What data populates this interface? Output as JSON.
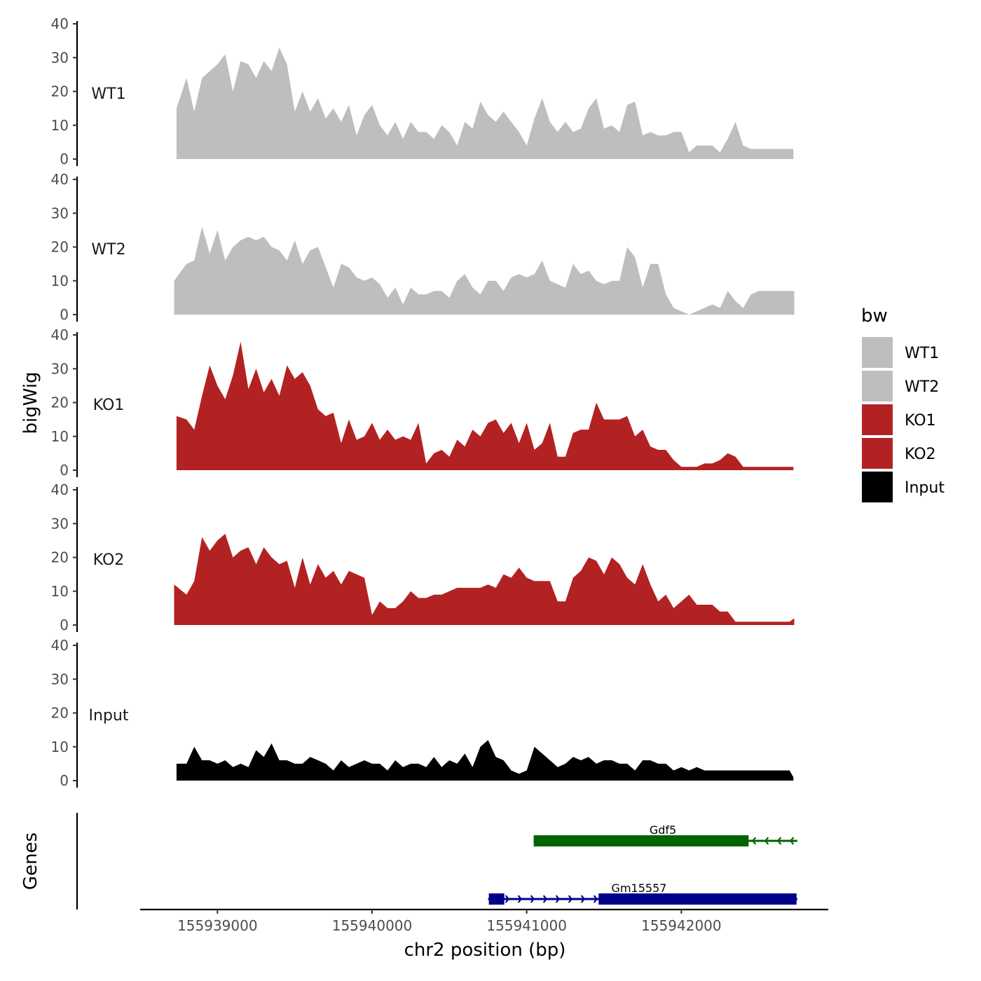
{
  "chart_data": {
    "type": "area",
    "title": "",
    "ylabel": "bigWig",
    "xlabel": "chr2 position (bp)",
    "ylim": [
      0,
      40
    ],
    "yticks": [
      0,
      10,
      20,
      30,
      40
    ],
    "xlim": [
      155938500,
      155942950
    ],
    "xticks": [
      155939000,
      155940000,
      155941000,
      155942000
    ],
    "xtick_labels": [
      "155939000",
      "155940000",
      "155941000",
      "155942000"
    ],
    "legend": {
      "title": "bw",
      "position": "right",
      "entries": [
        {
          "name": "WT1",
          "color": "#bebebe"
        },
        {
          "name": "WT2",
          "color": "#bebebe"
        },
        {
          "name": "KO1",
          "color": "#b22222"
        },
        {
          "name": "KO2",
          "color": "#b22222"
        },
        {
          "name": "Input",
          "color": "#000000"
        }
      ]
    },
    "series": [
      {
        "name": "WT1",
        "color": "#bebebe",
        "x": [
          155938735,
          155938800,
          155938850,
          155938900,
          155938950,
          155939000,
          155939050,
          155939100,
          155939150,
          155939200,
          155939250,
          155939300,
          155939350,
          155939400,
          155939450,
          155939500,
          155939550,
          155939600,
          155939650,
          155939700,
          155939750,
          155939800,
          155939850,
          155939900,
          155939950,
          155940000,
          155940050,
          155940100,
          155940150,
          155940200,
          155940250,
          155940300,
          155940350,
          155940400,
          155940450,
          155940500,
          155940550,
          155940600,
          155940650,
          155940700,
          155940750,
          155940800,
          155940850,
          155940900,
          155940950,
          155941000,
          155941050,
          155941100,
          155941150,
          155941200,
          155941250,
          155941300,
          155941350,
          155941400,
          155941450,
          155941500,
          155941550,
          155941600,
          155941650,
          155941700,
          155941750,
          155941800,
          155941850,
          155941900,
          155941950,
          155942000,
          155942050,
          155942100,
          155942150,
          155942200,
          155942250,
          155942300,
          155942350,
          155942400,
          155942450,
          155942500,
          155942550,
          155942600,
          155942650,
          155942700,
          155942725
        ],
        "values": [
          15,
          24,
          14,
          24,
          26,
          28,
          31,
          20,
          29,
          28,
          24,
          29,
          26,
          33,
          28,
          14,
          20,
          14,
          18,
          12,
          15,
          11,
          16,
          7,
          13,
          16,
          10,
          7,
          11,
          6,
          11,
          8,
          8,
          6,
          10,
          8,
          4,
          11,
          9,
          17,
          13,
          11,
          14,
          11,
          8,
          4,
          12,
          18,
          11,
          8,
          11,
          8,
          9,
          15,
          18,
          9,
          10,
          8,
          16,
          17,
          7,
          8,
          7,
          7,
          8,
          8,
          2,
          4,
          4,
          4,
          2,
          6,
          11,
          4,
          3,
          3,
          3,
          3,
          3,
          3,
          3
        ]
      },
      {
        "name": "WT2",
        "color": "#bebebe",
        "x": [
          155938720,
          155938800,
          155938850,
          155938900,
          155938950,
          155939000,
          155939050,
          155939100,
          155939150,
          155939200,
          155939250,
          155939300,
          155939350,
          155939400,
          155939450,
          155939500,
          155939550,
          155939600,
          155939650,
          155939700,
          155939750,
          155939800,
          155939850,
          155939900,
          155939950,
          155940000,
          155940050,
          155940100,
          155940150,
          155940200,
          155940250,
          155940300,
          155940350,
          155940400,
          155940450,
          155940500,
          155940550,
          155940600,
          155940650,
          155940700,
          155940750,
          155940800,
          155940850,
          155940900,
          155940950,
          155941000,
          155941050,
          155941100,
          155941150,
          155941200,
          155941250,
          155941300,
          155941350,
          155941400,
          155941450,
          155941500,
          155941550,
          155941600,
          155941650,
          155941700,
          155941750,
          155941800,
          155941850,
          155941900,
          155941950,
          155942000,
          155942050,
          155942100,
          155942150,
          155942200,
          155942250,
          155942300,
          155942350,
          155942400,
          155942450,
          155942500,
          155942550,
          155942600,
          155942650,
          155942700,
          155942730
        ],
        "values": [
          10,
          15,
          16,
          26,
          18,
          25,
          16,
          20,
          22,
          23,
          22,
          23,
          20,
          19,
          16,
          22,
          15,
          19,
          20,
          14,
          8,
          15,
          14,
          11,
          10,
          11,
          9,
          5,
          8,
          3,
          8,
          6,
          6,
          7,
          7,
          5,
          10,
          12,
          8,
          6,
          10,
          10,
          7,
          11,
          12,
          11,
          12,
          16,
          10,
          9,
          8,
          15,
          12,
          13,
          10,
          9,
          10,
          10,
          20,
          17,
          8,
          15,
          15,
          6,
          2,
          1,
          0,
          1,
          2,
          3,
          2,
          7,
          4,
          2,
          6,
          7,
          7,
          7,
          7,
          7,
          7
        ]
      },
      {
        "name": "KO1",
        "color": "#b22222",
        "x": [
          155938735,
          155938800,
          155938850,
          155938900,
          155938950,
          155939000,
          155939050,
          155939100,
          155939150,
          155939200,
          155939250,
          155939300,
          155939350,
          155939400,
          155939450,
          155939500,
          155939550,
          155939600,
          155939650,
          155939700,
          155939750,
          155939800,
          155939850,
          155939900,
          155939950,
          155940000,
          155940050,
          155940100,
          155940150,
          155940200,
          155940250,
          155940300,
          155940350,
          155940400,
          155940450,
          155940500,
          155940550,
          155940600,
          155940650,
          155940700,
          155940750,
          155940800,
          155940850,
          155940900,
          155940950,
          155941000,
          155941050,
          155941100,
          155941150,
          155941200,
          155941250,
          155941300,
          155941350,
          155941400,
          155941450,
          155941500,
          155941550,
          155941600,
          155941650,
          155941700,
          155941750,
          155941800,
          155941850,
          155941900,
          155941950,
          155942000,
          155942050,
          155942100,
          155942150,
          155942200,
          155942250,
          155942300,
          155942350,
          155942400,
          155942450,
          155942500,
          155942550,
          155942600,
          155942650,
          155942700,
          155942725
        ],
        "values": [
          16,
          15,
          12,
          22,
          31,
          25,
          21,
          28,
          38,
          24,
          30,
          23,
          27,
          22,
          31,
          27,
          29,
          25,
          18,
          16,
          17,
          8,
          15,
          9,
          10,
          14,
          9,
          12,
          9,
          10,
          9,
          14,
          2,
          5,
          6,
          4,
          9,
          7,
          12,
          10,
          14,
          15,
          11,
          14,
          8,
          14,
          6,
          8,
          14,
          4,
          4,
          11,
          12,
          12,
          20,
          15,
          15,
          15,
          16,
          10,
          12,
          7,
          6,
          6,
          3,
          1,
          1,
          1,
          2,
          2,
          3,
          5,
          4,
          1,
          1,
          1,
          1,
          1,
          1,
          1,
          1
        ]
      },
      {
        "name": "KO2",
        "color": "#b22222",
        "x": [
          155938720,
          155938800,
          155938850,
          155938900,
          155938950,
          155939000,
          155939050,
          155939100,
          155939150,
          155939200,
          155939250,
          155939300,
          155939350,
          155939400,
          155939450,
          155939500,
          155939550,
          155939600,
          155939650,
          155939700,
          155939750,
          155939800,
          155939850,
          155939900,
          155939950,
          155940000,
          155940050,
          155940100,
          155940150,
          155940200,
          155940250,
          155940300,
          155940350,
          155940400,
          155940450,
          155940500,
          155940550,
          155940600,
          155940650,
          155940700,
          155940750,
          155940800,
          155940850,
          155940900,
          155940950,
          155941000,
          155941050,
          155941100,
          155941150,
          155941200,
          155941250,
          155941300,
          155941350,
          155941400,
          155941450,
          155941500,
          155941550,
          155941600,
          155941650,
          155941700,
          155941750,
          155941800,
          155941850,
          155941900,
          155941950,
          155942000,
          155942050,
          155942100,
          155942150,
          155942200,
          155942250,
          155942300,
          155942350,
          155942400,
          155942450,
          155942500,
          155942550,
          155942600,
          155942650,
          155942700,
          155942730
        ],
        "values": [
          12,
          9,
          13,
          26,
          22,
          25,
          27,
          20,
          22,
          23,
          18,
          23,
          20,
          18,
          19,
          11,
          20,
          12,
          18,
          14,
          16,
          12,
          16,
          15,
          14,
          3,
          7,
          5,
          5,
          7,
          10,
          8,
          8,
          9,
          9,
          10,
          11,
          11,
          11,
          11,
          12,
          11,
          15,
          14,
          17,
          14,
          13,
          13,
          13,
          7,
          7,
          14,
          16,
          20,
          19,
          15,
          20,
          18,
          14,
          12,
          18,
          12,
          7,
          9,
          5,
          7,
          9,
          6,
          6,
          6,
          4,
          4,
          1,
          1,
          1,
          1,
          1,
          1,
          1,
          1,
          2
        ]
      },
      {
        "name": "Input",
        "color": "#000000",
        "x": [
          155938735,
          155938800,
          155938850,
          155938900,
          155938950,
          155939000,
          155939050,
          155939100,
          155939150,
          155939200,
          155939250,
          155939300,
          155939350,
          155939400,
          155939450,
          155939500,
          155939550,
          155939600,
          155939650,
          155939700,
          155939750,
          155939800,
          155939850,
          155939900,
          155939950,
          155940000,
          155940050,
          155940100,
          155940150,
          155940200,
          155940250,
          155940300,
          155940350,
          155940400,
          155940450,
          155940500,
          155940550,
          155940600,
          155940650,
          155940700,
          155940750,
          155940800,
          155940850,
          155940900,
          155940950,
          155941000,
          155941050,
          155941100,
          155941150,
          155941200,
          155941250,
          155941300,
          155941350,
          155941400,
          155941450,
          155941500,
          155941550,
          155941600,
          155941650,
          155941700,
          155941750,
          155941800,
          155941850,
          155941900,
          155941950,
          155942000,
          155942050,
          155942100,
          155942150,
          155942200,
          155942250,
          155942300,
          155942350,
          155942400,
          155942450,
          155942500,
          155942550,
          155942600,
          155942650,
          155942700,
          155942725
        ],
        "values": [
          5,
          5,
          10,
          6,
          6,
          5,
          6,
          4,
          5,
          4,
          9,
          7,
          11,
          6,
          6,
          5,
          5,
          7,
          6,
          5,
          3,
          6,
          4,
          5,
          6,
          5,
          5,
          3,
          6,
          4,
          5,
          5,
          4,
          7,
          4,
          6,
          5,
          8,
          4,
          10,
          12,
          7,
          6,
          3,
          2,
          3,
          10,
          8,
          6,
          4,
          5,
          7,
          6,
          7,
          5,
          6,
          6,
          5,
          5,
          3,
          6,
          6,
          5,
          5,
          3,
          4,
          3,
          4,
          3,
          3,
          3,
          3,
          3,
          3,
          3,
          3,
          3,
          3,
          3,
          3,
          1
        ]
      }
    ],
    "genes_track": {
      "ylabel": "Genes",
      "genes": [
        {
          "name": "Gdf5",
          "strand": "-",
          "color": "#006400",
          "start": 155941045,
          "end": 155942750,
          "exons": [
            {
              "start": 155941045,
              "end": 155942435
            }
          ]
        },
        {
          "name": "Gm15557",
          "strand": "+",
          "color": "#00008b",
          "start": 155940750,
          "end": 155942750,
          "exons": [
            {
              "start": 155940755,
              "end": 155940855
            },
            {
              "start": 155941465,
              "end": 155942745
            }
          ]
        }
      ]
    }
  }
}
